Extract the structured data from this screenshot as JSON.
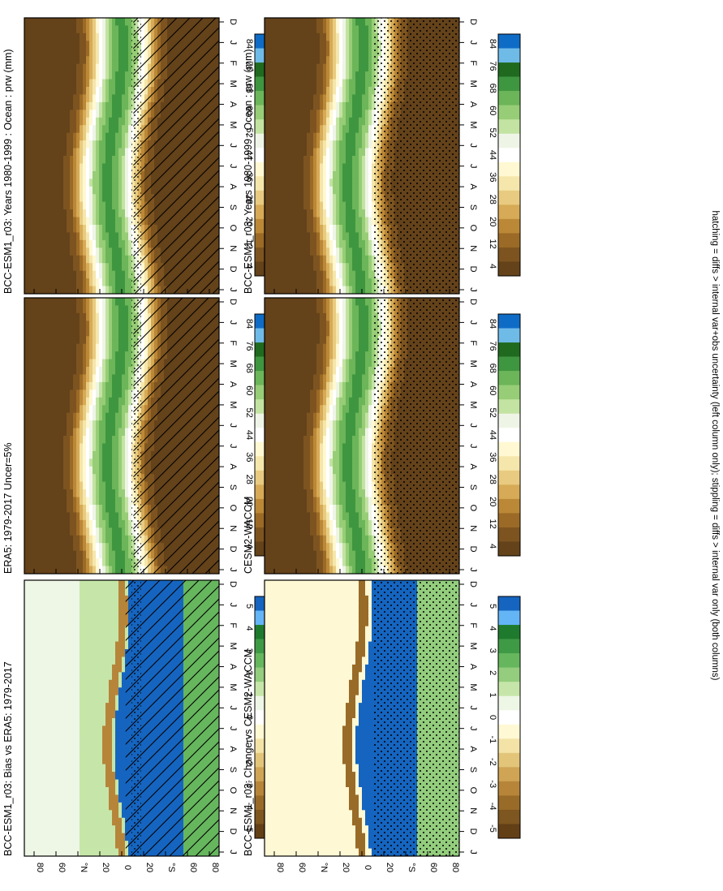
{
  "figure_footer": "hatching = diffs > internal var+obs uncertainty (left column only); stippling = diffs > internal var only (both columns)",
  "chart_data": [
    {
      "type": "heatmap",
      "title": "BCC-ESM1_r03: Years 1980-1999 : Ocean : prw (mm)",
      "x": [
        "D",
        "J",
        "F",
        "M",
        "A",
        "M",
        "J",
        "J",
        "A",
        "S",
        "O",
        "N",
        "D",
        "J"
      ],
      "y_ticks": [
        "80",
        "60",
        "°N",
        "20",
        "0",
        "20",
        "°S",
        "60",
        "80"
      ],
      "ylim": [
        -90,
        90
      ],
      "colorbar": {
        "labels": [
          "84",
          "76",
          "68",
          "60",
          "52",
          "44",
          "36",
          "28",
          "20",
          "12",
          "4"
        ]
      },
      "overlay": "hatching + stippling"
    },
    {
      "type": "heatmap",
      "title": "BCC-ESM1_r03: Years 1980-1999 : Ocean : prw (mm)",
      "x": [
        "D",
        "J",
        "F",
        "M",
        "A",
        "M",
        "J",
        "J",
        "A",
        "S",
        "O",
        "N",
        "D",
        "J"
      ],
      "y_ticks": [
        "80",
        "60",
        "°N",
        "20",
        "0",
        "20",
        "°S",
        "60",
        "80"
      ],
      "ylim": [
        -90,
        90
      ],
      "colorbar": {
        "labels": [
          "84",
          "76",
          "68",
          "60",
          "52",
          "44",
          "36",
          "28",
          "20",
          "12",
          "4"
        ]
      },
      "overlay": "stippling"
    },
    {
      "type": "heatmap",
      "title": "ERA5: 1979-2017 Uncer=5%",
      "x": [
        "D",
        "J",
        "F",
        "M",
        "A",
        "M",
        "J",
        "J",
        "A",
        "S",
        "O",
        "N",
        "D",
        "J"
      ],
      "y_ticks": [
        "80",
        "60",
        "°N",
        "20",
        "0",
        "20",
        "°S",
        "60",
        "80"
      ],
      "ylim": [
        -90,
        90
      ],
      "colorbar": {
        "labels": [
          "84",
          "76",
          "68",
          "60",
          "52",
          "44",
          "36",
          "28",
          "20",
          "12",
          "4"
        ]
      },
      "overlay": "hatching + stippling"
    },
    {
      "type": "heatmap",
      "title": "CESM2-WACCM",
      "x": [
        "D",
        "J",
        "F",
        "M",
        "A",
        "M",
        "J",
        "J",
        "A",
        "S",
        "O",
        "N",
        "D",
        "J"
      ],
      "y_ticks": [
        "80",
        "60",
        "°N",
        "20",
        "0",
        "20",
        "°S",
        "60",
        "80"
      ],
      "ylim": [
        -90,
        90
      ],
      "colorbar": {
        "labels": [
          "84",
          "76",
          "68",
          "60",
          "52",
          "44",
          "36",
          "28",
          "20",
          "12",
          "4"
        ]
      },
      "overlay": "stippling"
    },
    {
      "type": "heatmap",
      "title": "BCC-ESM1_r03: Bias vs ERA5: 1979-2017",
      "x": [
        "D",
        "J",
        "F",
        "M",
        "A",
        "M",
        "J",
        "J",
        "A",
        "S",
        "O",
        "N",
        "D",
        "J"
      ],
      "y_ticks": [
        "80",
        "60",
        "°N",
        "20",
        "0",
        "20",
        "°S",
        "60",
        "80"
      ],
      "ylim": [
        -90,
        90
      ],
      "colorbar": {
        "labels": [
          "5",
          "4",
          "3",
          "2",
          "1",
          "0",
          "-1",
          "-2",
          "-3",
          "-4",
          "-5"
        ]
      },
      "overlay": "hatching + stippling"
    },
    {
      "type": "heatmap",
      "title": "BCC-ESM1_r03: Change vs CESM2-WACCM",
      "x": [
        "D",
        "J",
        "F",
        "M",
        "A",
        "M",
        "J",
        "J",
        "A",
        "S",
        "O",
        "N",
        "D",
        "J"
      ],
      "y_ticks": [
        "80",
        "60",
        "°N",
        "20",
        "0",
        "20",
        "°S",
        "60",
        "80"
      ],
      "ylim": [
        -90,
        90
      ],
      "colorbar": {
        "labels": [
          "5",
          "4",
          "3",
          "2",
          "1",
          "0",
          "-1",
          "-2",
          "-3",
          "-4",
          "-5"
        ]
      },
      "overlay": "stippling"
    }
  ],
  "palettes": {
    "absolute": [
      "#0f6cc6",
      "#6fbbe8",
      "#1f6a1f",
      "#3f9640",
      "#6cb559",
      "#97cd76",
      "#c2e3a2",
      "#eff5e6",
      "#ffffff",
      "#fff8d2",
      "#f5e6ab",
      "#e8cb80",
      "#d6aa56",
      "#bb8838",
      "#9b6a26",
      "#7d5420",
      "#64421a"
    ],
    "diff": [
      "#1565c0",
      "#64b5f6",
      "#1e7b2e",
      "#3f9a45",
      "#66b65e",
      "#93cd7d",
      "#c6e6a9",
      "#eef6e6",
      "#ffffff",
      "#fff8d4",
      "#f3e3a7",
      "#e3c57a",
      "#cfa454",
      "#b6853a",
      "#996b28",
      "#7d5620",
      "#633f16"
    ]
  }
}
